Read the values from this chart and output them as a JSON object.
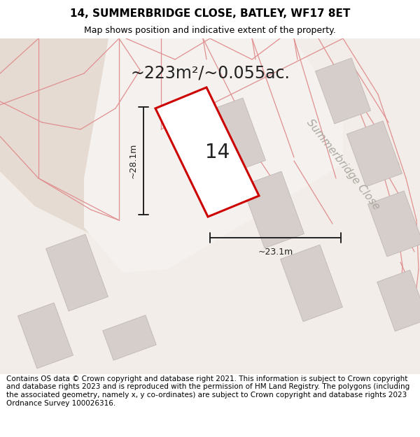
{
  "title": "14, SUMMERBRIDGE CLOSE, BATLEY, WF17 8ET",
  "subtitle": "Map shows position and indicative extent of the property.",
  "area_label": "~223m²/~0.055ac.",
  "width_label": "~23.1m",
  "height_label": "~28.1m",
  "number_label": "14",
  "road_label": "Summerbridge Close",
  "footer": "Contains OS data © Crown copyright and database right 2021. This information is subject to Crown copyright and database rights 2023 and is reproduced with the permission of HM Land Registry. The polygons (including the associated geometry, namely x, y co-ordinates) are subject to Crown copyright and database rights 2023 Ordnance Survey 100026316.",
  "map_bg": "#f2ede8",
  "land_bg": "#e5dbd2",
  "plot_white": "#f5f1ee",
  "building_fill": "#d6ceca",
  "building_edge": "#c0b8b4",
  "red_main": "#cc0000",
  "red_light": "#e09090",
  "dark": "#222222",
  "road_text": "#aaa8a0",
  "title_fs": 11,
  "subtitle_fs": 9,
  "area_fs": 17,
  "label_fs": 9,
  "num_fs": 20,
  "road_fs": 11,
  "footer_fs": 7.5
}
